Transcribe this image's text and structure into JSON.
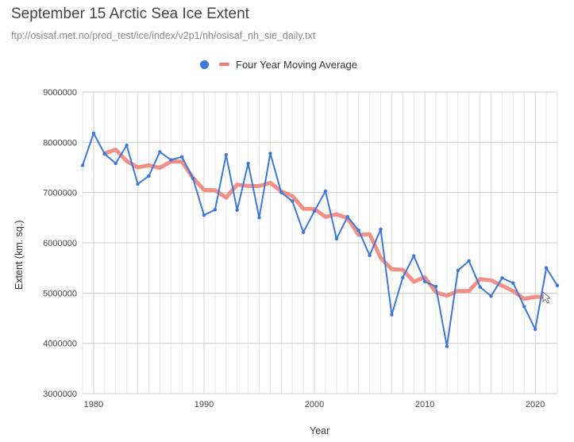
{
  "chart_data": {
    "type": "line",
    "title": "September 15 Arctic Sea Ice Extent",
    "subtitle": "ftp://osisaf.met.no/prod_test/ice/index/v2p1/nh/osisaf_nh_sie_daily.txt",
    "xlabel": "Year",
    "ylabel": "Extent (km. sq.)",
    "xlim": [
      1979,
      2022
    ],
    "ylim": [
      3000000,
      9000000
    ],
    "x_ticks": [
      1980,
      1990,
      2000,
      2010,
      2020
    ],
    "x_tick_labels": [
      "1980",
      "1990",
      "2000",
      "2010",
      "2020"
    ],
    "y_ticks": [
      3000000,
      4000000,
      5000000,
      6000000,
      7000000,
      8000000,
      9000000
    ],
    "y_tick_labels": [
      "3000000",
      "4000000",
      "5000000",
      "6000000",
      "7000000",
      "8000000",
      "9000000"
    ],
    "grid": true,
    "minor_x_grid_step": 1,
    "legend_position": "top",
    "series": [
      {
        "name": "",
        "color": "#3c78d8",
        "legend_marker": "dot",
        "x": [
          1979,
          1980,
          1981,
          1982,
          1983,
          1984,
          1985,
          1986,
          1987,
          1988,
          1989,
          1990,
          1991,
          1992,
          1993,
          1994,
          1995,
          1996,
          1997,
          1998,
          1999,
          2000,
          2001,
          2002,
          2003,
          2004,
          2005,
          2006,
          2007,
          2008,
          2009,
          2010,
          2011,
          2012,
          2013,
          2014,
          2015,
          2016,
          2017,
          2018,
          2019,
          2020,
          2021,
          2022
        ],
        "values": [
          7540000,
          8180000,
          7770000,
          7580000,
          7940000,
          7170000,
          7330000,
          7810000,
          7650000,
          7710000,
          7280000,
          6550000,
          6660000,
          7750000,
          6650000,
          7580000,
          6500000,
          7780000,
          7000000,
          6830000,
          6210000,
          6630000,
          7030000,
          6080000,
          6520000,
          6250000,
          5750000,
          6270000,
          4570000,
          5310000,
          5740000,
          5230000,
          5130000,
          3940000,
          5450000,
          5640000,
          5120000,
          4940000,
          5300000,
          5200000,
          4730000,
          4280000,
          5500000,
          5150000
        ]
      },
      {
        "name": "Four Year Moving Average",
        "color": "#f07b72",
        "legend_marker": "dash",
        "x": [
          1981,
          1982,
          1983,
          1984,
          1985,
          1986,
          1987,
          1988,
          1989,
          1990,
          1991,
          1992,
          1993,
          1994,
          1995,
          1996,
          1997,
          1998,
          1999,
          2000,
          2001,
          2002,
          2003,
          2004,
          2005,
          2006,
          2007,
          2008,
          2009,
          2010,
          2011,
          2012,
          2013,
          2014,
          2015,
          2016,
          2017,
          2018,
          2019,
          2020,
          2021
        ],
        "values": [
          7780000,
          7855000,
          7627000,
          7502000,
          7543000,
          7491000,
          7617000,
          7617000,
          7291000,
          7052000,
          7047000,
          6899000,
          7158000,
          7131000,
          7131000,
          7194000,
          7025000,
          6931000,
          6678000,
          6675000,
          6517000,
          6569000,
          6490000,
          6158000,
          6174000,
          5700000,
          5474000,
          5463000,
          5226000,
          5316000,
          5016000,
          4947000,
          5042000,
          5042000,
          5279000,
          5253000,
          5147000,
          5042000,
          4884000,
          4926000,
          4926000
        ]
      }
    ]
  },
  "cursor": "mouse-pointer-icon"
}
